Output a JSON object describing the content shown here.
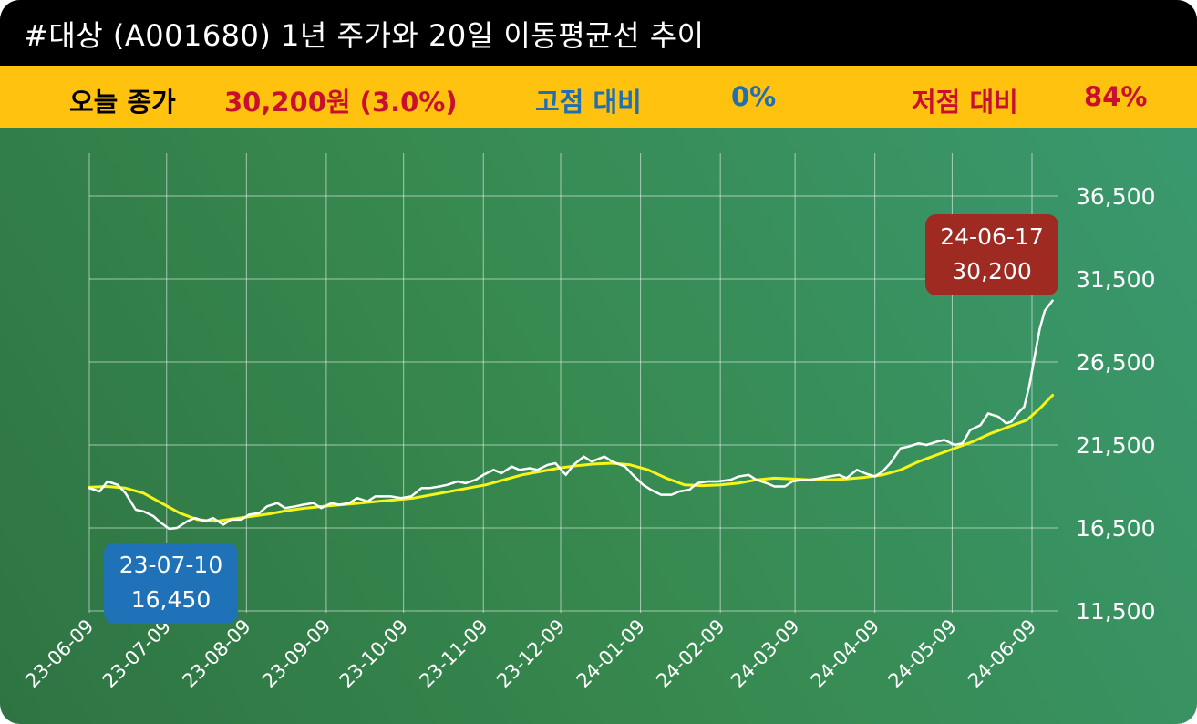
{
  "header": {
    "title": "#대상 (A001680) 1년 주가와 20일 이동평균선 추이"
  },
  "info": {
    "close_label": "오늘 종가",
    "close_value": "30,200원 (3.0%)",
    "high_label": "고점 대비",
    "high_value": "0%",
    "low_label": "저점 대비",
    "low_value": "84%"
  },
  "colors": {
    "title_bg": "#000000",
    "info_bg": "#ffc20e",
    "close": "#c8102e",
    "high": "#1f6fb2",
    "low": "#c8102e",
    "price_line": "#ffffff",
    "ma_line": "#f5f51a",
    "low_box": "#1f72b8",
    "high_box": "#9e2a22"
  },
  "callouts": {
    "low": {
      "date": "23-07-10",
      "value": "16,450"
    },
    "high": {
      "date": "24-06-17",
      "value": "30,200"
    }
  },
  "chart_data": {
    "type": "line",
    "title": "#대상 (A001680) 1년 주가와 20일 이동평균선 추이",
    "y_ticks": [
      "36,500",
      "31,500",
      "26,500",
      "21,500",
      "16,500",
      "11,500"
    ],
    "y_tick_values": [
      36500,
      31500,
      26500,
      21500,
      16500,
      11500
    ],
    "ylim": [
      11500,
      36500
    ],
    "x_ticks": [
      "23-06-09",
      "23-07-09",
      "23-08-09",
      "23-09-09",
      "23-10-09",
      "23-11-09",
      "23-12-09",
      "24-01-09",
      "24-02-09",
      "24-03-09",
      "24-04-09",
      "24-05-09",
      "24-06-09"
    ],
    "x_tick_dates": [
      "2023-06-09",
      "2023-07-09",
      "2023-08-09",
      "2023-09-09",
      "2023-10-09",
      "2023-11-09",
      "2023-12-09",
      "2024-01-09",
      "2024-02-09",
      "2024-03-09",
      "2024-04-09",
      "2024-05-09",
      "2024-06-09"
    ],
    "grid": true,
    "series": [
      {
        "name": "price",
        "points": [
          [
            "2023-06-09",
            18900
          ],
          [
            "2023-06-13",
            18700
          ],
          [
            "2023-06-16",
            19300
          ],
          [
            "2023-06-20",
            19100
          ],
          [
            "2023-06-23",
            18600
          ],
          [
            "2023-06-27",
            17600
          ],
          [
            "2023-06-30",
            17500
          ],
          [
            "2023-07-04",
            17200
          ],
          [
            "2023-07-06",
            16900
          ],
          [
            "2023-07-10",
            16450
          ],
          [
            "2023-07-13",
            16500
          ],
          [
            "2023-07-17",
            16900
          ],
          [
            "2023-07-20",
            17100
          ],
          [
            "2023-07-24",
            16900
          ],
          [
            "2023-07-27",
            17100
          ],
          [
            "2023-07-31",
            16700
          ],
          [
            "2023-08-03",
            17000
          ],
          [
            "2023-08-07",
            17000
          ],
          [
            "2023-08-10",
            17300
          ],
          [
            "2023-08-14",
            17400
          ],
          [
            "2023-08-17",
            17800
          ],
          [
            "2023-08-21",
            18000
          ],
          [
            "2023-08-24",
            17700
          ],
          [
            "2023-08-28",
            17800
          ],
          [
            "2023-08-31",
            17900
          ],
          [
            "2023-09-04",
            18000
          ],
          [
            "2023-09-07",
            17700
          ],
          [
            "2023-09-11",
            18000
          ],
          [
            "2023-09-14",
            17900
          ],
          [
            "2023-09-18",
            18000
          ],
          [
            "2023-09-21",
            18300
          ],
          [
            "2023-09-25",
            18100
          ],
          [
            "2023-09-28",
            18400
          ],
          [
            "2023-10-04",
            18400
          ],
          [
            "2023-10-08",
            18300
          ],
          [
            "2023-10-12",
            18400
          ],
          [
            "2023-10-16",
            18900
          ],
          [
            "2023-10-19",
            18900
          ],
          [
            "2023-10-23",
            19000
          ],
          [
            "2023-10-26",
            19100
          ],
          [
            "2023-10-30",
            19300
          ],
          [
            "2023-11-02",
            19200
          ],
          [
            "2023-11-06",
            19400
          ],
          [
            "2023-11-09",
            19700
          ],
          [
            "2023-11-13",
            20000
          ],
          [
            "2023-11-16",
            19800
          ],
          [
            "2023-11-20",
            20200
          ],
          [
            "2023-11-23",
            20000
          ],
          [
            "2023-11-27",
            20100
          ],
          [
            "2023-11-30",
            20000
          ],
          [
            "2023-12-04",
            20300
          ],
          [
            "2023-12-07",
            20400
          ],
          [
            "2023-12-11",
            19700
          ],
          [
            "2023-12-14",
            20300
          ],
          [
            "2023-12-18",
            20800
          ],
          [
            "2023-12-21",
            20500
          ],
          [
            "2023-12-26",
            20800
          ],
          [
            "2023-12-29",
            20500
          ],
          [
            "2024-01-03",
            20200
          ],
          [
            "2024-01-06",
            19700
          ],
          [
            "2024-01-10",
            19100
          ],
          [
            "2024-01-13",
            18800
          ],
          [
            "2024-01-17",
            18500
          ],
          [
            "2024-01-21",
            18500
          ],
          [
            "2024-01-24",
            18700
          ],
          [
            "2024-01-28",
            18800
          ],
          [
            "2024-01-31",
            19200
          ],
          [
            "2024-02-04",
            19300
          ],
          [
            "2024-02-08",
            19300
          ],
          [
            "2024-02-13",
            19400
          ],
          [
            "2024-02-16",
            19600
          ],
          [
            "2024-02-20",
            19700
          ],
          [
            "2024-02-23",
            19400
          ],
          [
            "2024-02-27",
            19200
          ],
          [
            "2024-03-01",
            19000
          ],
          [
            "2024-03-05",
            19000
          ],
          [
            "2024-03-08",
            19300
          ],
          [
            "2024-03-12",
            19400
          ],
          [
            "2024-03-15",
            19400
          ],
          [
            "2024-03-19",
            19500
          ],
          [
            "2024-03-22",
            19600
          ],
          [
            "2024-03-26",
            19700
          ],
          [
            "2024-03-29",
            19500
          ],
          [
            "2024-04-02",
            20000
          ],
          [
            "2024-04-05",
            19800
          ],
          [
            "2024-04-09",
            19600
          ],
          [
            "2024-04-12",
            19900
          ],
          [
            "2024-04-15",
            20400
          ],
          [
            "2024-04-19",
            21300
          ],
          [
            "2024-04-22",
            21400
          ],
          [
            "2024-04-26",
            21600
          ],
          [
            "2024-04-29",
            21500
          ],
          [
            "2024-05-03",
            21700
          ],
          [
            "2024-05-06",
            21800
          ],
          [
            "2024-05-10",
            21500
          ],
          [
            "2024-05-13",
            21600
          ],
          [
            "2024-05-16",
            22400
          ],
          [
            "2024-05-20",
            22700
          ],
          [
            "2024-05-23",
            23400
          ],
          [
            "2024-05-27",
            23200
          ],
          [
            "2024-05-30",
            22800
          ],
          [
            "2024-06-01",
            22900
          ],
          [
            "2024-06-04",
            23500
          ],
          [
            "2024-06-06",
            23800
          ],
          [
            "2024-06-08",
            25100
          ],
          [
            "2024-06-10",
            26800
          ],
          [
            "2024-06-12",
            28500
          ],
          [
            "2024-06-14",
            29600
          ],
          [
            "2024-06-17",
            30200
          ]
        ]
      },
      {
        "name": "20일 이동평균선",
        "points": [
          [
            "2023-06-09",
            18950
          ],
          [
            "2023-06-16",
            19000
          ],
          [
            "2023-06-23",
            18900
          ],
          [
            "2023-06-30",
            18600
          ],
          [
            "2023-07-07",
            18000
          ],
          [
            "2023-07-14",
            17400
          ],
          [
            "2023-07-21",
            17000
          ],
          [
            "2023-07-28",
            16900
          ],
          [
            "2023-08-04",
            17050
          ],
          [
            "2023-08-11",
            17200
          ],
          [
            "2023-08-18",
            17350
          ],
          [
            "2023-08-25",
            17550
          ],
          [
            "2023-09-01",
            17700
          ],
          [
            "2023-09-08",
            17800
          ],
          [
            "2023-09-15",
            17900
          ],
          [
            "2023-09-22",
            18000
          ],
          [
            "2023-09-29",
            18100
          ],
          [
            "2023-10-06",
            18200
          ],
          [
            "2023-10-13",
            18300
          ],
          [
            "2023-10-20",
            18500
          ],
          [
            "2023-10-27",
            18700
          ],
          [
            "2023-11-03",
            18900
          ],
          [
            "2023-11-10",
            19100
          ],
          [
            "2023-11-17",
            19400
          ],
          [
            "2023-11-24",
            19700
          ],
          [
            "2023-12-01",
            19900
          ],
          [
            "2023-12-08",
            20100
          ],
          [
            "2023-12-15",
            20250
          ],
          [
            "2023-12-22",
            20350
          ],
          [
            "2023-12-29",
            20400
          ],
          [
            "2024-01-05",
            20300
          ],
          [
            "2024-01-12",
            20000
          ],
          [
            "2024-01-19",
            19500
          ],
          [
            "2024-01-26",
            19100
          ],
          [
            "2024-02-02",
            19050
          ],
          [
            "2024-02-09",
            19100
          ],
          [
            "2024-02-16",
            19200
          ],
          [
            "2024-02-23",
            19400
          ],
          [
            "2024-03-01",
            19500
          ],
          [
            "2024-03-08",
            19450
          ],
          [
            "2024-03-15",
            19400
          ],
          [
            "2024-03-22",
            19400
          ],
          [
            "2024-03-29",
            19450
          ],
          [
            "2024-04-05",
            19550
          ],
          [
            "2024-04-12",
            19700
          ],
          [
            "2024-04-19",
            20000
          ],
          [
            "2024-04-26",
            20500
          ],
          [
            "2024-05-03",
            20900
          ],
          [
            "2024-05-10",
            21300
          ],
          [
            "2024-05-17",
            21700
          ],
          [
            "2024-05-24",
            22200
          ],
          [
            "2024-05-31",
            22600
          ],
          [
            "2024-06-07",
            23000
          ],
          [
            "2024-06-12",
            23700
          ],
          [
            "2024-06-17",
            24500
          ]
        ]
      }
    ]
  }
}
